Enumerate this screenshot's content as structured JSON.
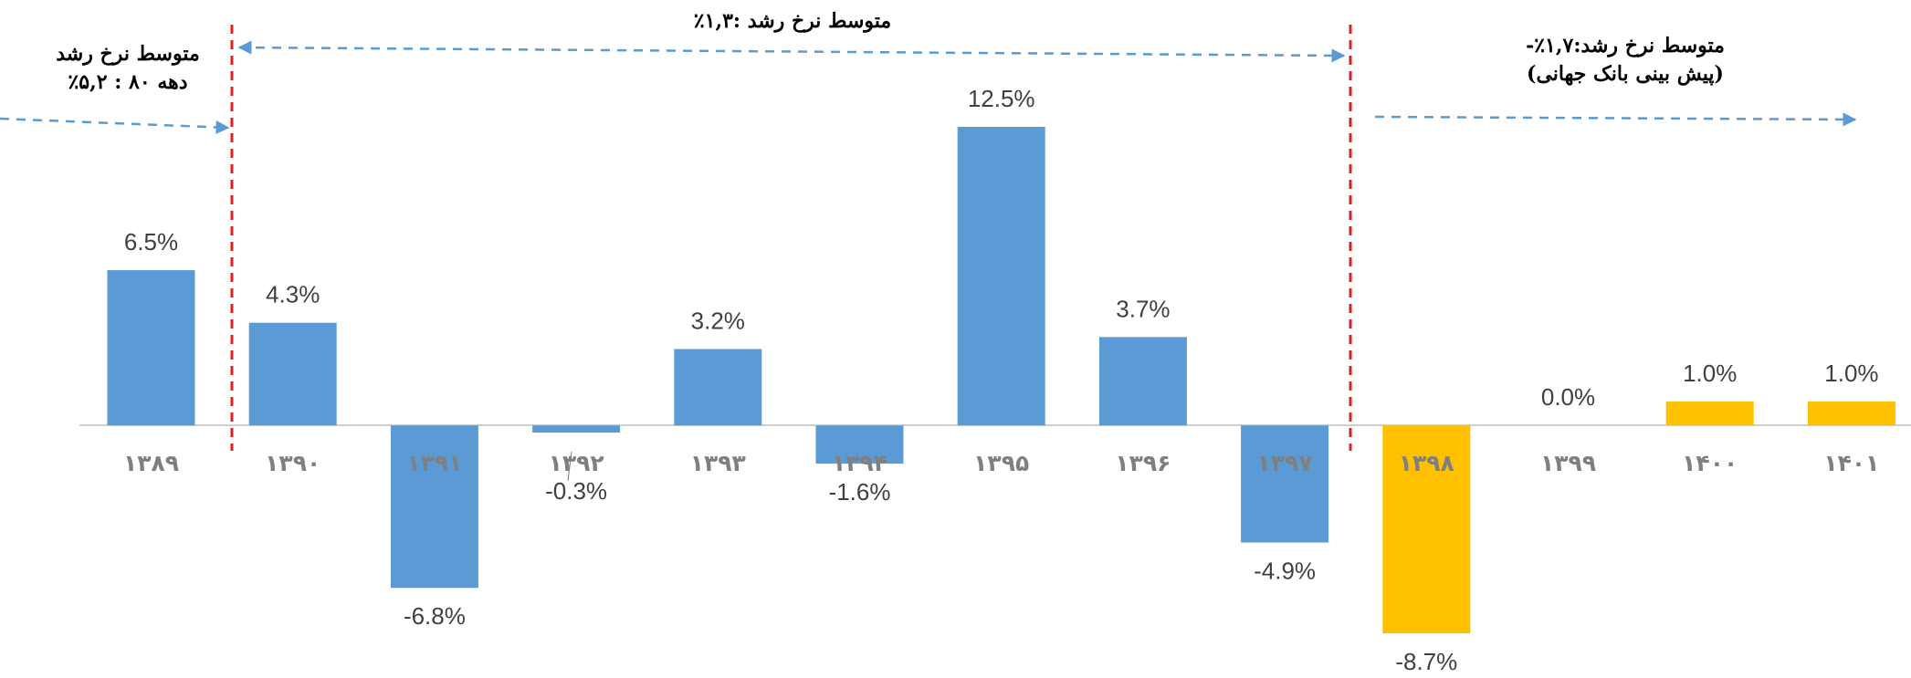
{
  "chart_data": {
    "type": "bar",
    "categories": [
      "۱۳۸۹",
      "۱۳۹۰",
      "۱۳۹۱",
      "۱۳۹۲",
      "۱۳۹۳",
      "۱۳۹۴",
      "۱۳۹۵",
      "۱۳۹۶",
      "۱۳۹۷",
      "۱۳۹۸",
      "۱۳۹۹",
      "۱۴۰۰",
      "۱۴۰۱"
    ],
    "values": [
      6.5,
      4.3,
      -6.8,
      -0.3,
      3.2,
      -1.6,
      12.5,
      3.7,
      -4.9,
      -8.7,
      0.0,
      1.0,
      1.0
    ],
    "value_labels": [
      "6.5%",
      "4.3%",
      "-6.8%",
      "-0.3%",
      "3.2%",
      "-1.6%",
      "12.5%",
      "3.7%",
      "-4.9%",
      "-8.7%",
      "0.0%",
      "1.0%",
      "1.0%"
    ],
    "colors": [
      "#5b9bd5",
      "#5b9bd5",
      "#5b9bd5",
      "#5b9bd5",
      "#5b9bd5",
      "#5b9bd5",
      "#5b9bd5",
      "#5b9bd5",
      "#5b9bd5",
      "#ffc000",
      "#ffc000",
      "#ffc000",
      "#ffc000"
    ],
    "annotations": [
      [
        "متوسط نرخ رشد",
        "دهه ۸۰ : ۵,۲٪"
      ],
      [
        "متوسط نرخ رشد :۱,۳٪"
      ],
      [
        "متوسط نرخ رشد:۱,۷٪-",
        "(پیش بینی بانک جهانی)"
      ]
    ]
  }
}
